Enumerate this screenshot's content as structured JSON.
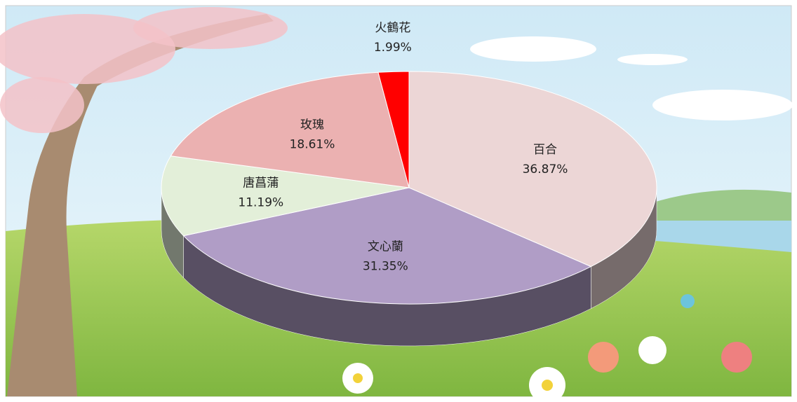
{
  "chart_data": {
    "type": "pie",
    "categories": [
      "百合",
      "文心蘭",
      "唐菖蒲",
      "玫瑰",
      "火鶴花"
    ],
    "values": [
      36.87,
      31.35,
      11.19,
      18.61,
      1.99
    ],
    "value_labels": [
      "36.87%",
      "31.35%",
      "11.19%",
      "18.61%",
      "1.99%"
    ],
    "colors": [
      "#ecd6d6",
      "#b09dc6",
      "#e3efd9",
      "#ebb1b1",
      "#ff0000"
    ]
  }
}
